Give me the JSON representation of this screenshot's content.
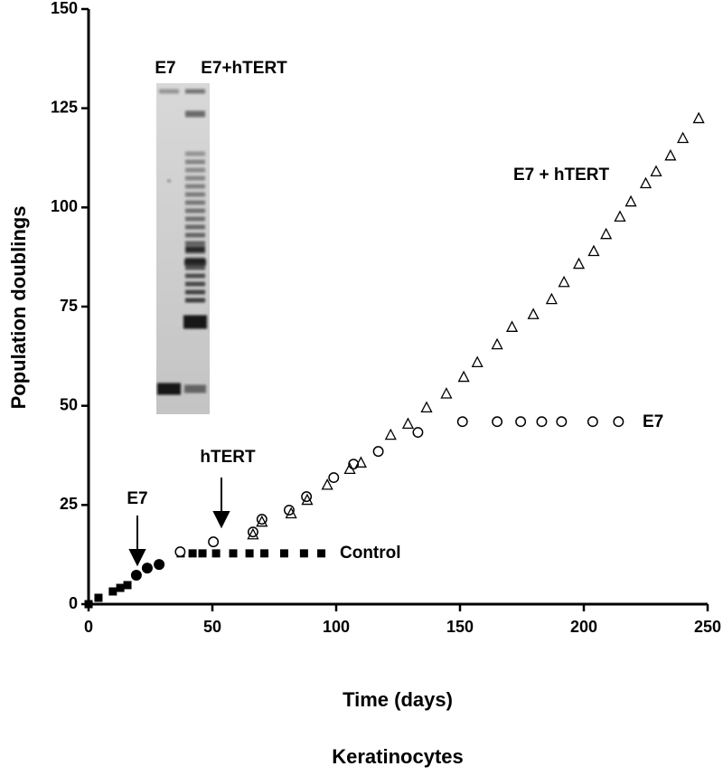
{
  "chart_data": {
    "type": "scatter",
    "y_label": "Population doublings",
    "x_label": "Time (days)",
    "caption": "Keratinocytes",
    "xlim": [
      0,
      250
    ],
    "xticks": [
      0,
      50,
      100,
      150,
      200,
      250
    ],
    "ylim": [
      0,
      150
    ],
    "yticks": [
      0,
      25,
      50,
      75,
      100,
      125,
      150
    ],
    "annotations": [
      "E7",
      "hTERT"
    ],
    "inset_labels": [
      "E7",
      "E7+hTERT"
    ],
    "series": [
      {
        "name": "Control",
        "marker": "square",
        "color": "#000000",
        "x": [
          0,
          4,
          9.8,
          12.8,
          15.7,
          37.2,
          42,
          46,
          51.5,
          58.4,
          65,
          71,
          79,
          87,
          94
        ],
        "values": [
          0,
          1.6,
          3.2,
          4.1,
          4.8,
          12.8,
          12.8,
          12.8,
          12.8,
          12.8,
          12.8,
          12.8,
          12.8,
          12.8,
          12.8
        ]
      },
      {
        "marker": "circle",
        "color": "#000000",
        "x": [
          19.3,
          23.7,
          28.5
        ],
        "values": [
          7.3,
          9.1,
          10
        ]
      },
      {
        "name": "E7",
        "marker": "circle-open",
        "color": "#000000",
        "x": [
          37,
          50.4,
          66.4,
          70,
          81,
          88,
          99,
          107,
          117,
          133,
          151,
          165,
          174.5,
          183,
          191,
          203.6,
          214
        ],
        "values": [
          13.2,
          15.7,
          18.2,
          21.4,
          23.7,
          27.1,
          31.9,
          35.3,
          38.5,
          43.3,
          46,
          46,
          46,
          46,
          46,
          46,
          46
        ]
      },
      {
        "name": "E7 + hTERT",
        "marker": "triangle-open",
        "color": "#000000",
        "x": [
          66.4,
          70,
          81.8,
          88.3,
          96.4,
          105.5,
          110,
          122,
          129,
          136.5,
          144.5,
          151.5,
          157,
          165,
          171,
          179.6,
          187,
          192,
          198,
          204,
          209,
          214.6,
          219,
          225,
          229.2,
          235,
          240,
          246.4
        ],
        "values": [
          17.5,
          20.7,
          22.8,
          26.2,
          30,
          34,
          35.6,
          42.6,
          45.4,
          49.5,
          53,
          57.2,
          60.9,
          65.4,
          69.8,
          73,
          76.8,
          81.1,
          85.7,
          88.9,
          93.2,
          97.6,
          101.4,
          106,
          109,
          113,
          117.4,
          122.4
        ]
      }
    ]
  }
}
